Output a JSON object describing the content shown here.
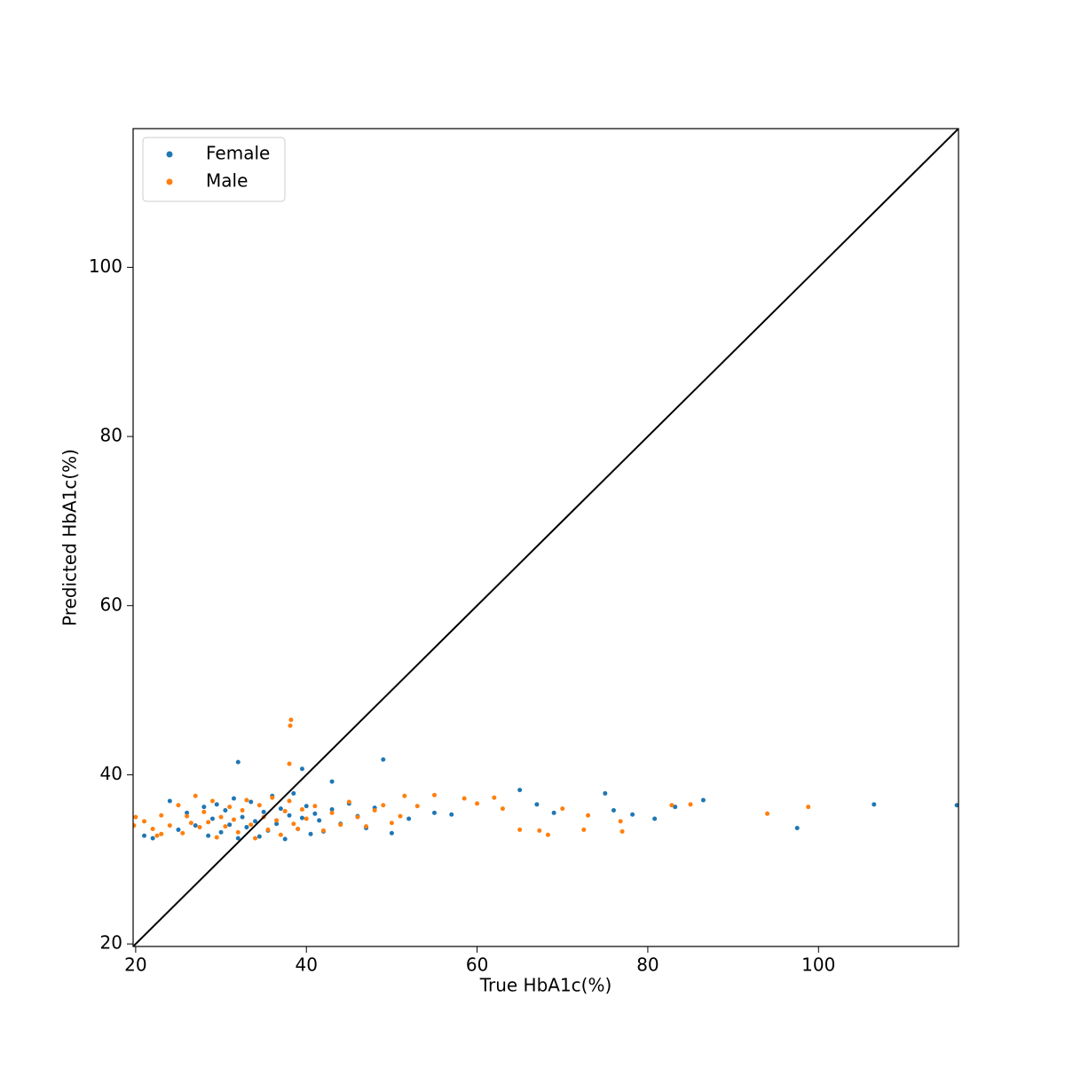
{
  "chart_data": {
    "type": "scatter",
    "x_label": "True HbA1c(%)",
    "y_label": "Predicted HbA1c(%)",
    "xlim": [
      19.7,
      116.4
    ],
    "ylim": [
      19.7,
      116.4
    ],
    "xticks": [
      20,
      40,
      60,
      80,
      100
    ],
    "yticks": [
      20,
      40,
      60,
      80,
      100
    ],
    "grid": false,
    "legend": "upper left",
    "identity_line": true,
    "series": [
      {
        "name": "Female",
        "color": "#1f77b4",
        "x": [
          25,
          26,
          27,
          28,
          28.5,
          29,
          29.5,
          30,
          30.5,
          31,
          31.5,
          32,
          32.5,
          33,
          33.5,
          34,
          34.5,
          35,
          35.5,
          36,
          36.5,
          37,
          37.5,
          38,
          38.5,
          39,
          39.5,
          40,
          40.5,
          41,
          41.5,
          42,
          43,
          44,
          45,
          46,
          47,
          48,
          52,
          55,
          32,
          49,
          39.5,
          43,
          65,
          75,
          86.5,
          106.5,
          116.2,
          97.5,
          80.8,
          83.2,
          78.2,
          76,
          67,
          69,
          57,
          50,
          24,
          21,
          22
        ],
        "y": [
          33.5,
          35.5,
          34,
          36.2,
          32.8,
          34.8,
          36.5,
          33.2,
          35.8,
          34.1,
          37.2,
          32.5,
          35,
          33.8,
          36.8,
          34.5,
          32.7,
          35.6,
          33.4,
          37.5,
          34.2,
          36,
          32.4,
          35.2,
          37.8,
          33.6,
          34.9,
          36.3,
          33,
          35.4,
          34.6,
          33.3,
          35.9,
          34.2,
          36.6,
          35.1,
          33.7,
          36.1,
          34.8,
          35.5,
          41.5,
          41.8,
          40.7,
          39.2,
          38.2,
          37.8,
          37,
          36.5,
          36.4,
          33.7,
          34.8,
          36.2,
          35.3,
          35.8,
          36.5,
          35.5,
          35.3,
          33.1,
          36.9,
          32.8,
          32.5
        ]
      },
      {
        "name": "Male",
        "color": "#ff7f0e",
        "x": [
          21,
          22,
          23,
          24,
          25,
          25.5,
          26,
          26.5,
          27,
          27.5,
          28,
          28.5,
          29,
          29.5,
          30,
          30.5,
          31,
          31.5,
          32,
          32.5,
          33,
          33.5,
          34,
          34.5,
          35,
          35.5,
          36,
          36.5,
          37,
          37.5,
          38,
          38.5,
          39,
          39.5,
          40,
          41,
          42,
          43,
          44,
          45,
          46,
          47,
          48,
          49,
          50,
          51,
          38.2,
          38.1,
          38,
          98.8,
          94,
          85,
          82.8,
          77,
          76.8,
          72.5,
          73,
          70,
          67.3,
          68.3,
          65,
          63,
          62,
          60,
          58.5,
          55,
          53,
          51.5,
          20,
          19.8,
          23,
          22.5
        ],
        "y": [
          34.5,
          33.6,
          35.2,
          34,
          36.4,
          33.1,
          35.1,
          34.3,
          37.5,
          33.8,
          35.6,
          34.4,
          36.9,
          32.6,
          35,
          33.9,
          36.2,
          34.7,
          33.2,
          35.8,
          37,
          34.1,
          32.5,
          36.4,
          35,
          33.5,
          37.3,
          34.6,
          32.9,
          35.7,
          36.9,
          34.2,
          33.6,
          35.9,
          34.8,
          36.3,
          33.4,
          35.5,
          34.1,
          36.8,
          35,
          33.9,
          35.8,
          36.4,
          34.3,
          35.1,
          46.5,
          45.8,
          41.3,
          36.2,
          35.4,
          36.5,
          36.4,
          33.3,
          34.5,
          33.5,
          35.2,
          36,
          33.4,
          32.9,
          33.5,
          36,
          37.3,
          36.6,
          37.2,
          37.6,
          36.3,
          37.5,
          35,
          34,
          33,
          32.8
        ]
      }
    ]
  }
}
